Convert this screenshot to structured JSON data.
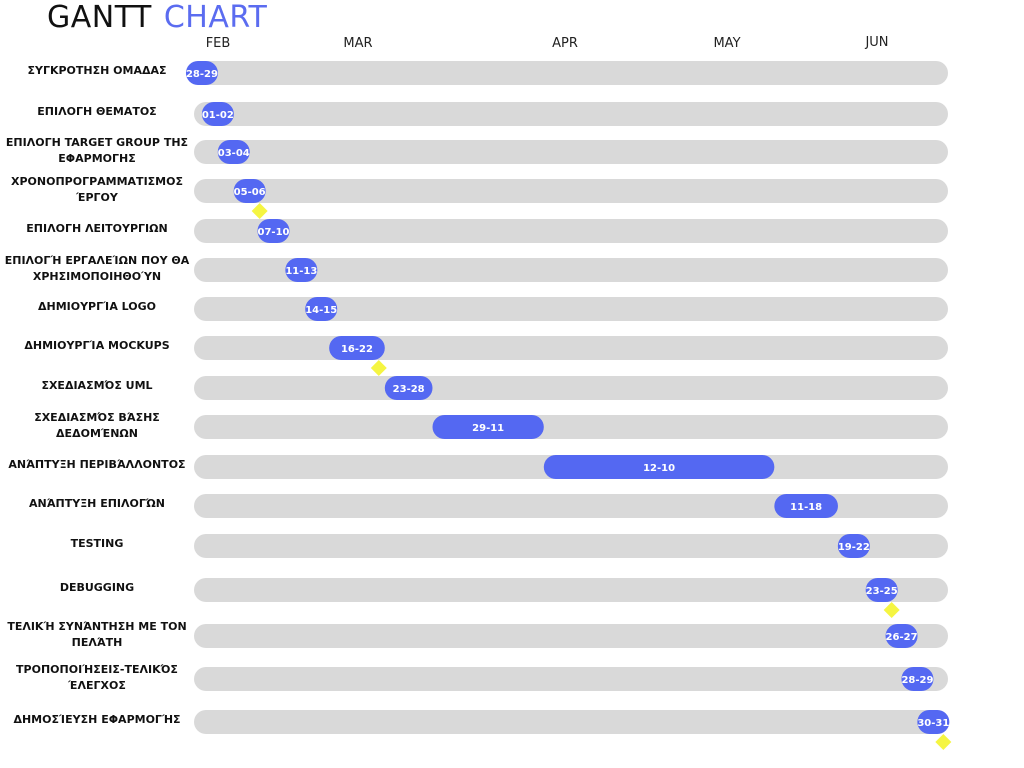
{
  "header": {
    "title_word1": "GANTT",
    "title_word2": "CHART"
  },
  "chart_data": {
    "type": "gantt",
    "colors": {
      "bar": "#5468f2",
      "track": "#d9d9d9",
      "milestone": "#f5f542",
      "title_accent": "#5b6cf0"
    },
    "months": [
      "FEB",
      "MAR",
      "APR",
      "MAY",
      "JUN"
    ],
    "tasks": [
      {
        "label": "ΣΥΓΚΡΟΤΗΣΗ ΟΜΑΔΑΣ",
        "range": "28-29",
        "start": "02-28",
        "end": "02-29",
        "milestone": false
      },
      {
        "label": "ΕΠΙΛΟΓΗ ΘΕΜΑΤΟΣ",
        "range": "01-02",
        "start": "03-01",
        "end": "03-02",
        "milestone": false
      },
      {
        "label": "ΕΠΙΛΟΓΗ TARGET GROUP ΤΗΣ ΕΦΑΡΜΟΓΗΣ",
        "range": "03-04",
        "start": "03-03",
        "end": "03-04",
        "milestone": false
      },
      {
        "label": "ΧΡΟΝΟΠΡΟΓΡΑΜΜΑΤΙΣΜΟΣ ΈΡΓΟΥ",
        "range": "05-06",
        "start": "03-05",
        "end": "03-06",
        "milestone": true
      },
      {
        "label": "ΕΠΙΛΟΓΗ ΛΕΙΤΟΥΡΓΙΩΝ",
        "range": "07-10",
        "start": "03-07",
        "end": "03-10",
        "milestone": false
      },
      {
        "label": "ΕΠΙΛΟΓΉ ΕΡΓΑΛΕΊΩΝ ΠΟΥ ΘΑ ΧΡΗΣΙΜΟΠΟΙΗΘΟΎΝ",
        "range": "11-13",
        "start": "03-11",
        "end": "03-13",
        "milestone": false
      },
      {
        "label": "ΔΗΜΙΟΥΡΓΊΑ LOGO",
        "range": "14-15",
        "start": "03-14",
        "end": "03-15",
        "milestone": false
      },
      {
        "label": "ΔΗΜΙΟΥΡΓΊΑ MOCKUPS",
        "range": "16-22",
        "start": "03-16",
        "end": "03-22",
        "milestone": true
      },
      {
        "label": "ΣΧΕΔΙΑΣΜΌΣ UML",
        "range": "23-28",
        "start": "03-23",
        "end": "03-28",
        "milestone": false
      },
      {
        "label": "ΣΧΕΔΙΑΣΜΌΣ ΒΆΣΗΣ ΔΕΔΟΜΈΝΩΝ",
        "range": "29-11",
        "start": "03-29",
        "end": "04-11",
        "milestone": false
      },
      {
        "label": "ΑΝΆΠΤΥΞΗ ΠΕΡΙΒΆΛΛΟΝΤΟΣ",
        "range": "12-10",
        "start": "04-12",
        "end": "05-10",
        "milestone": false
      },
      {
        "label": "ΑΝΆΠΤΥΞΗ ΕΠΙΛΟΓΏΝ",
        "range": "11-18",
        "start": "05-11",
        "end": "05-18",
        "milestone": false
      },
      {
        "label": "TESTING",
        "range": "19-22",
        "start": "05-19",
        "end": "05-22",
        "milestone": false
      },
      {
        "label": "DEBUGGING",
        "range": "23-25",
        "start": "05-23",
        "end": "05-25",
        "milestone": true
      },
      {
        "label": "ΤΕΛΙΚΉ ΣΥΝΆΝΤΗΣΗ ΜΕ ΤΟΝ ΠΕΛΆΤΗ",
        "range": "26-27",
        "start": "05-26",
        "end": "05-27",
        "milestone": false
      },
      {
        "label": "ΤΡΟΠΟΠΟΙΉΣΕΙΣ-ΤΕΛΙΚΌΣ ΈΛΕΓΧΟΣ",
        "range": "28-29",
        "start": "05-28",
        "end": "05-29",
        "milestone": false
      },
      {
        "label": "ΔΗΜΟΣΊΕΥΣΗ ΕΦΑΡΜΟΓΉΣ",
        "range": "30-31",
        "start": "05-30",
        "end": "05-31",
        "milestone": true
      }
    ]
  }
}
